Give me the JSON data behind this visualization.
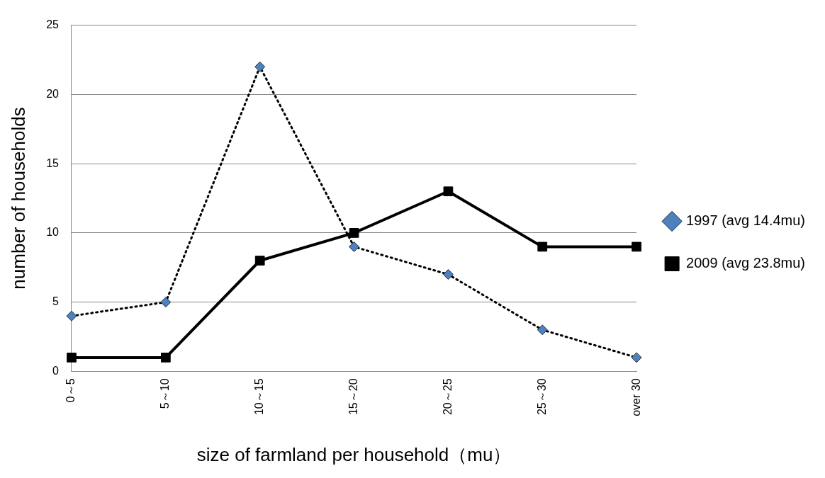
{
  "chart_data": {
    "type": "line",
    "xlabel": "size of farmland per household（mu）",
    "ylabel": "number of households",
    "categories": [
      "0～5",
      "5～10",
      "10～15",
      "15～20",
      "20～25",
      "25～30",
      "over 30"
    ],
    "series": [
      {
        "name": "1997 (avg 14.4mu)",
        "color": "#4f81bd",
        "values": [
          4,
          5,
          22,
          9,
          7,
          3,
          1
        ],
        "marker": "diamond",
        "line_style": "dotted"
      },
      {
        "name": "2009 (avg 23.8mu)",
        "color": "#000000",
        "values": [
          1,
          1,
          8,
          10,
          13,
          9,
          9
        ],
        "marker": "square",
        "line_style": "solid"
      }
    ],
    "ylim": [
      0,
      25
    ],
    "yticks": [
      0,
      5,
      10,
      15,
      20,
      25
    ],
    "grid": "y",
    "legend": "right"
  }
}
